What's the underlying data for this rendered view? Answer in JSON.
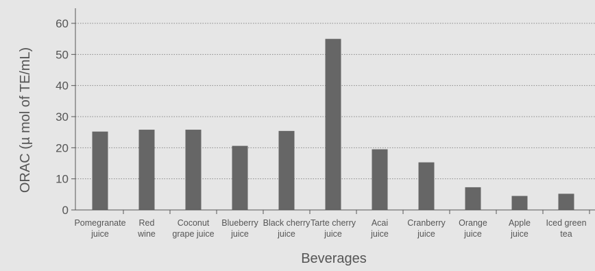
{
  "chart_data": {
    "type": "bar",
    "title": "",
    "xlabel": "Beverages",
    "ylabel": "ORAC (µ mol of TE/mL)",
    "ylim": [
      0,
      60
    ],
    "yticks": [
      0,
      10,
      20,
      30,
      40,
      50,
      60
    ],
    "grid": true,
    "categories": [
      [
        "Pomegranate",
        "juice"
      ],
      [
        "Red",
        "wine"
      ],
      [
        "Coconut",
        "grape juice"
      ],
      [
        "Blueberry",
        "juice"
      ],
      [
        "Black cherry",
        "juice"
      ],
      [
        "Tarte cherry",
        "juice"
      ],
      [
        "Acai",
        "juice"
      ],
      [
        "Cranberry",
        "juice"
      ],
      [
        "Orange",
        "juice"
      ],
      [
        "Apple",
        "juice"
      ],
      [
        "Iced green",
        "tea"
      ]
    ],
    "values": [
      25.2,
      25.8,
      25.8,
      20.6,
      25.4,
      55.0,
      19.5,
      15.3,
      7.3,
      4.5,
      5.2
    ],
    "colors": {
      "bar": "#666666",
      "background": "#e6e6e6",
      "axis": "#555555",
      "grid": "#888888",
      "text": "#555555"
    }
  }
}
